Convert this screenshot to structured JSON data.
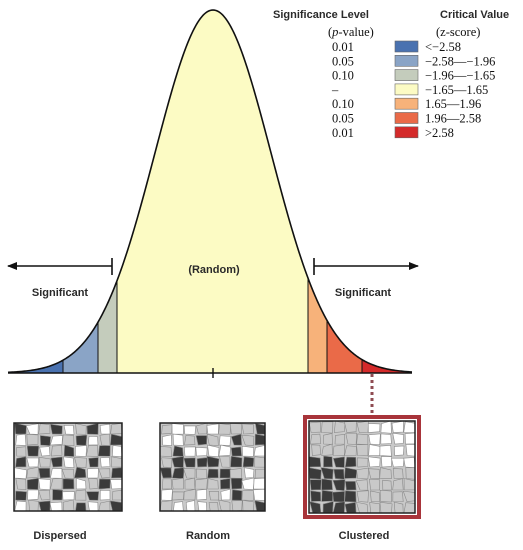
{
  "legend": {
    "header_left": "Significance Level",
    "header_left_sub_italic": "p",
    "header_left_sub_rest": "-value)",
    "header_left_sub_open": "(",
    "header_right": "Critical Value",
    "header_right_sub": "(z-score)",
    "rows": [
      {
        "p": "0.01",
        "z": "<−2.58",
        "color": "#4a72b0"
      },
      {
        "p": "0.05",
        "z": "−2.58—−1.96",
        "color": "#8aa4c6"
      },
      {
        "p": "0.10",
        "z": "−1.96—−1.65",
        "color": "#c4ccbc"
      },
      {
        "p": "–",
        "z": "−1.65—1.65",
        "color": "#fcfbc4"
      },
      {
        "p": "0.10",
        "z": "1.65—1.96",
        "color": "#f7b27a"
      },
      {
        "p": "0.05",
        "z": "1.96—2.58",
        "color": "#ea6a48"
      },
      {
        "p": "0.01",
        "z": ">2.58",
        "color": "#d42a2a"
      }
    ]
  },
  "curve": {
    "center_label": "(Random)",
    "left_label": "Significant",
    "right_label": "Significant"
  },
  "maps": {
    "dispersed": "Dispersed",
    "random": "Random",
    "clustered": "Clustered",
    "highlight_color": "#a8343a"
  }
}
